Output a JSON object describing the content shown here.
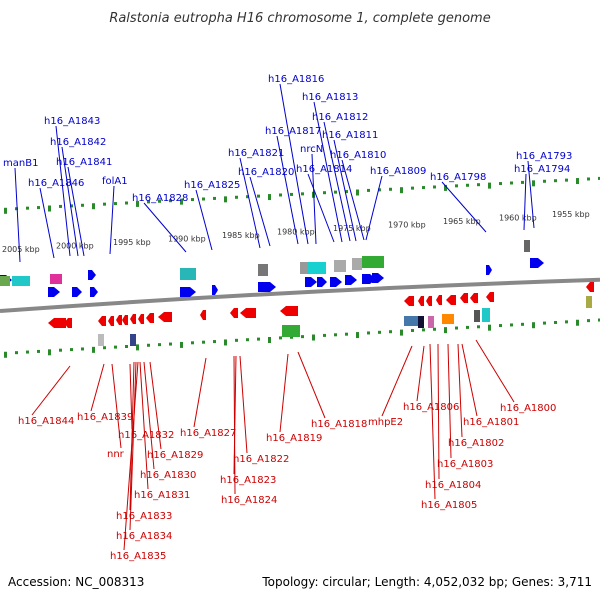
{
  "title": "Ralstonia eutropha H16 chromosome 1, complete genome",
  "accession": "Accession: NC_008313",
  "topology": "Topology: circular; Length: 4,052,032 bp; Genes: 3,711",
  "colors": {
    "forward_label": "#0000cc",
    "reverse_label": "#cc0000",
    "forward_gene": "#0000ee",
    "reverse_gene": "#ee0000",
    "backbone": "#888888",
    "tick": "#2a8a2a"
  },
  "scale_ticks": [
    "2005 kbp",
    "2000 kbp",
    "1995 kbp",
    "1990 kbp",
    "1985 kbp",
    "1980 kbp",
    "1975 kbp",
    "1970 kbp",
    "1965 kbp",
    "1960 kbp",
    "1955 kbp"
  ],
  "forward_labels": [
    "manB1",
    "h16_A1846",
    "h16_A1843",
    "h16_A1842",
    "h16_A1841",
    "folA1",
    "h16_A1828",
    "h16_A1825",
    "h16_A1821",
    "h16_A1820",
    "h16_A1817",
    "h16_A1816",
    "nrcN",
    "h16_A1814",
    "h16_A1813",
    "h16_A1812",
    "h16_A1811",
    "h16_A1810",
    "h16_A1809",
    "h16_A1798",
    "h16_A1794",
    "h16_A1793"
  ],
  "reverse_labels": [
    "h16_A1844",
    "h16_A1839",
    "nnr",
    "h16_A1832",
    "h16_A1829",
    "h16_A1830",
    "h16_A1831",
    "h16_A1833",
    "h16_A1834",
    "h16_A1835",
    "h16_A1827",
    "h16_A1822",
    "h16_A1823",
    "h16_A1824",
    "h16_A1819",
    "h16_A1818",
    "mhpE2",
    "h16_A1806",
    "h16_A1801",
    "h16_A1802",
    "h16_A1803",
    "h16_A1804",
    "h16_A1805",
    "h16_A1800"
  ]
}
